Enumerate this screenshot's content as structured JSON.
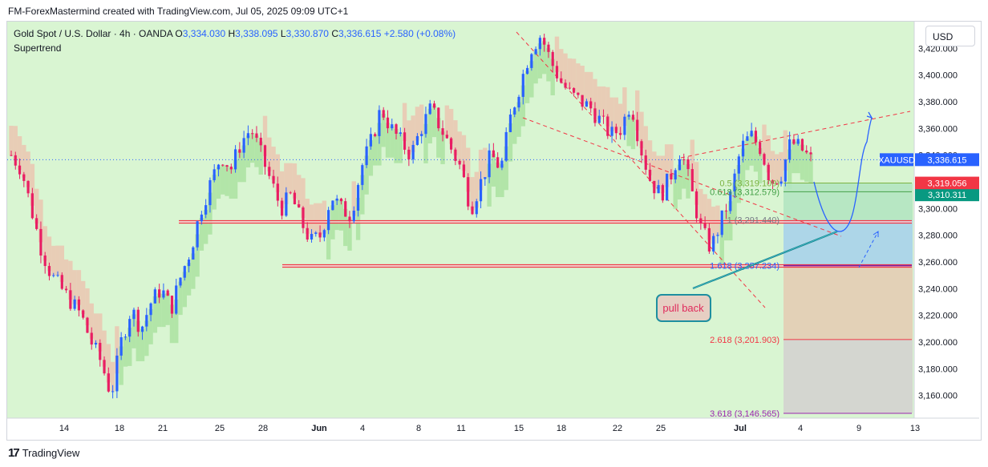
{
  "header": {
    "caption": "FM-ForexMastermind created with TradingView.com, Jul 05, 2025 09:09 UTC+1"
  },
  "legend": {
    "symbol_line": "Gold Spot / U.S. Dollar · 4h · OANDA",
    "o_label": "O",
    "o_value": "3,334.030",
    "h_label": "H",
    "h_value": "3,338.095",
    "l_label": "L",
    "l_value": "3,330.870",
    "c_label": "C",
    "c_value": "3,336.615",
    "change": "+2.580 (+0.08%)",
    "indicator": "Supertrend"
  },
  "currency_button": "USD",
  "footer": {
    "brand": "TradingView",
    "logo": "17"
  },
  "colors": {
    "bull": "#2962ff",
    "bear": "#e91e63",
    "support_up": "#b2e5a8",
    "resist_down": "#e8cdb6",
    "price_tag_bg": "#2962ff",
    "red_tag_bg": "#f23645",
    "green_tag_bg": "#089981"
  },
  "price_tags": [
    {
      "id": "xauusd-tag",
      "symbol": "XAUUSD",
      "value": "3,336.615"
    },
    {
      "id": "red-tag",
      "value": "3,319.056"
    },
    {
      "id": "green-tag",
      "value": "3,310.311"
    }
  ],
  "annotation": {
    "text": "pull back"
  },
  "chart_data": {
    "type": "candlestick",
    "title": "Gold Spot / U.S. Dollar · 4h · OANDA",
    "y_ticks": [
      "3,420.000",
      "3,400.000",
      "3,380.000",
      "3,360.000",
      "3,340.000",
      "3,320.000",
      "3,300.000",
      "3,280.000",
      "3,260.000",
      "3,240.000",
      "3,220.000",
      "3,200.000",
      "3,180.000",
      "3,160.000"
    ],
    "ylim": [
      3143,
      3440
    ],
    "x_ticks": [
      "14",
      "18",
      "21",
      "25",
      "28",
      "Jun",
      "4",
      "8",
      "11",
      "15",
      "18",
      "22",
      "25",
      "Jul",
      "4",
      "9",
      "13"
    ],
    "levels": [
      {
        "name": "support-zone-top",
        "price": 3290
      },
      {
        "name": "support-zone-bottom",
        "price": 3257
      }
    ],
    "fib_levels": [
      {
        "label": "0.5 (3,319.109)",
        "price": 3319.109
      },
      {
        "label": "0.618 (3,312.579)",
        "price": 3312.579
      },
      {
        "label": "1 (3,291.440)",
        "price": 3291.44
      },
      {
        "label": "1.618 (3,257.234)",
        "price": 3257.234
      },
      {
        "label": "2.618 (3,201.903)",
        "price": 3201.903
      },
      {
        "label": "3.618 (3,146.565)",
        "price": 3146.565
      }
    ],
    "series": [
      {
        "name": "candles (approx. swing path)",
        "points": [
          [
            0,
            3340
          ],
          [
            1,
            3330
          ],
          [
            2,
            3300
          ],
          [
            3,
            3270
          ],
          [
            4,
            3250
          ],
          [
            5,
            3240
          ],
          [
            6,
            3230
          ],
          [
            7,
            3220
          ],
          [
            8,
            3200
          ],
          [
            9,
            3185
          ],
          [
            10,
            3160
          ],
          [
            11,
            3200
          ],
          [
            12,
            3225
          ],
          [
            13,
            3210
          ],
          [
            14,
            3230
          ],
          [
            15,
            3240
          ],
          [
            16,
            3225
          ],
          [
            17,
            3250
          ],
          [
            18,
            3270
          ],
          [
            19,
            3300
          ],
          [
            20,
            3320
          ],
          [
            21,
            3340
          ],
          [
            22,
            3330
          ],
          [
            23,
            3350
          ],
          [
            24,
            3360
          ],
          [
            25,
            3340
          ],
          [
            26,
            3320
          ],
          [
            27,
            3300
          ],
          [
            28,
            3310
          ],
          [
            29,
            3290
          ],
          [
            30,
            3275
          ],
          [
            31,
            3280
          ],
          [
            32,
            3310
          ],
          [
            33,
            3300
          ],
          [
            34,
            3295
          ],
          [
            35,
            3330
          ],
          [
            36,
            3350
          ],
          [
            37,
            3375
          ],
          [
            38,
            3360
          ],
          [
            39,
            3350
          ],
          [
            40,
            3340
          ],
          [
            41,
            3360
          ],
          [
            42,
            3375
          ],
          [
            43,
            3360
          ],
          [
            44,
            3345
          ],
          [
            45,
            3330
          ],
          [
            46,
            3300
          ],
          [
            47,
            3320
          ],
          [
            48,
            3340
          ],
          [
            49,
            3330
          ],
          [
            50,
            3370
          ],
          [
            51,
            3395
          ],
          [
            52,
            3420
          ],
          [
            53,
            3430
          ],
          [
            54,
            3410
          ],
          [
            55,
            3395
          ],
          [
            56,
            3385
          ],
          [
            57,
            3380
          ],
          [
            58,
            3375
          ],
          [
            59,
            3365
          ],
          [
            60,
            3355
          ],
          [
            61,
            3360
          ],
          [
            62,
            3380
          ],
          [
            63,
            3345
          ],
          [
            64,
            3320
          ],
          [
            65,
            3310
          ],
          [
            66,
            3325
          ],
          [
            67,
            3345
          ],
          [
            68,
            3315
          ],
          [
            69,
            3285
          ],
          [
            70,
            3270
          ],
          [
            71,
            3290
          ],
          [
            72,
            3310
          ],
          [
            73,
            3345
          ],
          [
            74,
            3355
          ],
          [
            75,
            3345
          ],
          [
            76,
            3320
          ],
          [
            77,
            3325
          ],
          [
            78,
            3350
          ],
          [
            79,
            3345
          ],
          [
            80,
            3336.6
          ]
        ]
      }
    ]
  }
}
